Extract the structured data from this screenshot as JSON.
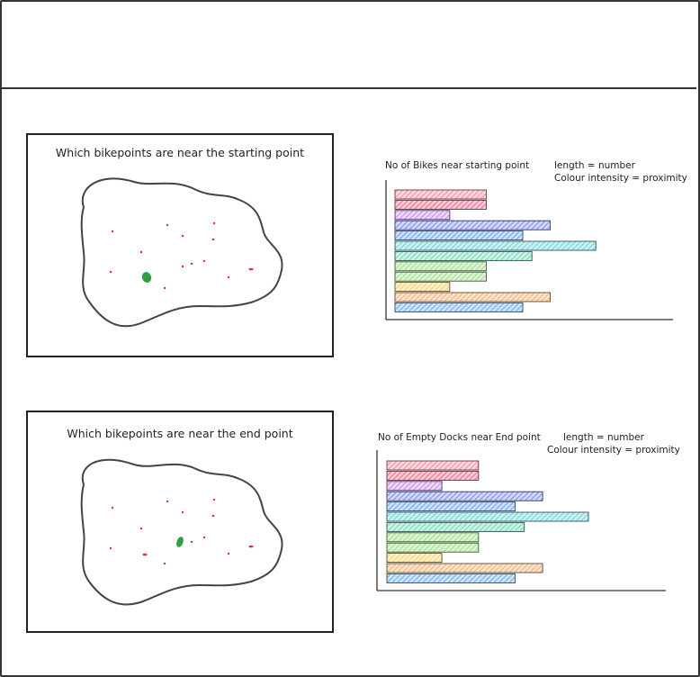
{
  "panels": [
    {
      "map_title": "Which bikepoints are near the starting point",
      "chart_title": "No of Bikes near starting point",
      "legend_length": "length = number",
      "legend_colour": "Colour intensity = proximity"
    },
    {
      "map_title": "Which bikepoints are near the end point",
      "chart_title": "No of Empty Docks near End point",
      "legend_length": "length = number",
      "legend_colour": "Colour intensity = proximity"
    }
  ],
  "colors": {
    "outline": "#444444",
    "bikepoint": "#e03030",
    "selected_point": "#2e9e3e"
  },
  "chart_data": [
    {
      "type": "bar",
      "orientation": "horizontal",
      "series": [
        {
          "values": [
            4,
            4,
            2.4,
            6.8,
            5.6,
            8.8,
            6,
            4,
            4,
            2.4,
            6.8,
            5.6
          ],
          "colors": [
            "#f48fa0",
            "#f06d8e",
            "#c88ef0",
            "#7f8ff0",
            "#6fa6f0",
            "#6fd6d6",
            "#74d8b8",
            "#9ee08a",
            "#9ee08a",
            "#f2d36a",
            "#f6b072",
            "#6fb0ee"
          ]
        }
      ],
      "xlim": [
        0,
        11
      ],
      "grid": false
    },
    {
      "type": "bar",
      "orientation": "horizontal",
      "series": [
        {
          "values": [
            4,
            4,
            2.4,
            6.8,
            5.6,
            8.8,
            6,
            4,
            4,
            2.4,
            6.8,
            5.6
          ],
          "colors": [
            "#f48fa0",
            "#f06d8e",
            "#c88ef0",
            "#7f8ff0",
            "#6fa6f0",
            "#6fd6d6",
            "#74d8b8",
            "#9ee08a",
            "#9ee08a",
            "#f2d36a",
            "#f6b072",
            "#6fb0ee"
          ]
        }
      ],
      "xlim": [
        0,
        11
      ],
      "grid": false
    }
  ]
}
